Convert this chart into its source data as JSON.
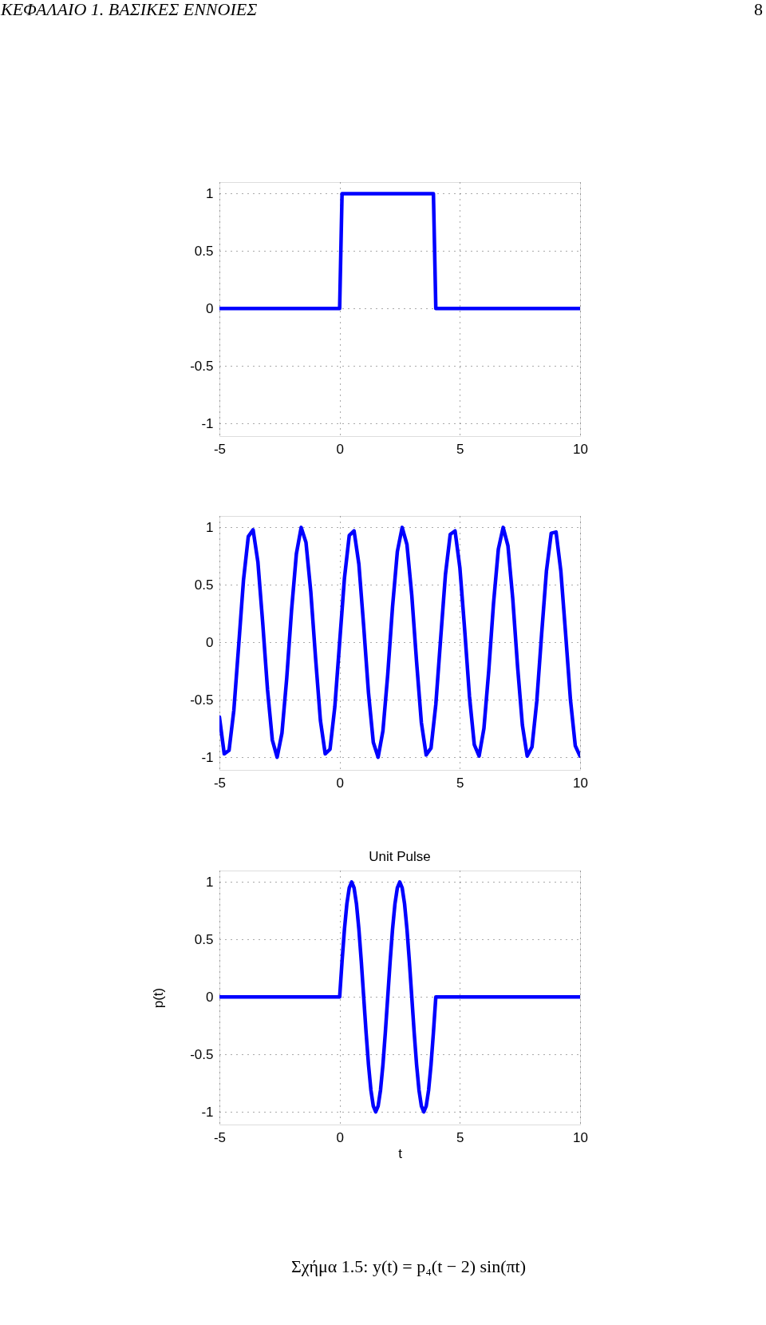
{
  "chart_data": [
    {
      "type": "line",
      "annotations": [
        "ΚΕΦΑΛΑΙΟ 1.  ΒΑΣΙΚΕΣ ΕΝΝΟΙΕΣ",
        "8"
      ],
      "xlim": [
        -5,
        10
      ],
      "ylim": [
        -1.11,
        1.1
      ],
      "xticks": [
        -5,
        0,
        5,
        10
      ],
      "yticks": [
        -1,
        -0.5,
        0,
        0.5,
        1
      ],
      "grid": true,
      "line_style": "solid",
      "series": [
        {
          "color": "#0000ff",
          "x": [
            -5,
            0,
            0.1,
            3.9,
            4,
            10
          ],
          "values": [
            0,
            0,
            1,
            1,
            0,
            0
          ]
        }
      ]
    },
    {
      "type": "line",
      "xlim": [
        -5,
        10
      ],
      "ylim": [
        -1.11,
        1.1
      ],
      "xticks": [
        -5,
        0,
        5,
        10
      ],
      "yticks": [
        -1,
        -0.5,
        0,
        0.5,
        1
      ],
      "grid": true,
      "line_style": "solid",
      "series": [
        {
          "color": "#0000ff",
          "x": [
            -5,
            -4.8,
            -4.6,
            -4.4,
            -4.2,
            -4,
            -3.8,
            -3.6,
            -3.4,
            -3.2,
            -3,
            -2.8,
            -2.6,
            -2.4,
            -2.2,
            -2,
            -1.8,
            -1.6,
            -1.4,
            -1.2,
            -1,
            -0.8,
            -0.6,
            -0.4,
            -0.2,
            0,
            0.2,
            0.4,
            0.6,
            0.8,
            1,
            1.2,
            1.4,
            1.6,
            1.8,
            2,
            2.2,
            2.4,
            2.6,
            2.8,
            3,
            3.2,
            3.4,
            3.6,
            3.8,
            4,
            4.2,
            4.4,
            4.6,
            4.8,
            5,
            5.2,
            5.4,
            5.6,
            5.8,
            6,
            6.2,
            6.4,
            6.6,
            6.8,
            7,
            7.2,
            7.4,
            7.6,
            7.8,
            8,
            8.2,
            8.4,
            8.6,
            8.8,
            9,
            9.2,
            9.4,
            9.6,
            9.8,
            10
          ],
          "values": [
            -0.65,
            -0.97,
            -0.94,
            -0.59,
            -0.03,
            0.54,
            0.92,
            0.98,
            0.7,
            0.17,
            -0.41,
            -0.85,
            -1.0,
            -0.79,
            -0.31,
            0.28,
            0.77,
            1.0,
            0.87,
            0.44,
            -0.14,
            -0.68,
            -0.97,
            -0.93,
            -0.56,
            0,
            0.56,
            0.93,
            0.97,
            0.68,
            0.14,
            -0.44,
            -0.87,
            -1.0,
            -0.77,
            -0.28,
            0.31,
            0.79,
            1.0,
            0.85,
            0.41,
            -0.17,
            -0.7,
            -0.98,
            -0.92,
            -0.54,
            0.03,
            0.59,
            0.94,
            0.97,
            0.65,
            0.11,
            -0.47,
            -0.89,
            -0.99,
            -0.75,
            -0.25,
            0.34,
            0.81,
            1.0,
            0.84,
            0.38,
            -0.21,
            -0.72,
            -0.99,
            -0.91,
            -0.51,
            0.07,
            0.62,
            0.95,
            0.96,
            0.62,
            0.07,
            -0.5,
            -0.9,
            -0.99
          ]
        }
      ]
    },
    {
      "type": "line",
      "title": "Unit Pulse",
      "xlabel": "t",
      "ylabel": "p(t)",
      "annotations": [
        "Σχήμα 1.5: y(t) = p₄(t − 2) sin(πt)"
      ],
      "xlim": [
        -5,
        10
      ],
      "ylim": [
        -1.11,
        1.1
      ],
      "xticks": [
        -5,
        0,
        5,
        10
      ],
      "yticks": [
        -1,
        -0.5,
        0,
        0.5,
        1
      ],
      "grid": true,
      "line_style": "solid",
      "series": [
        {
          "color": "#0000ff",
          "x": [
            -5,
            0,
            0.1,
            0.2,
            0.3,
            0.4,
            0.5,
            0.6,
            0.7,
            0.8,
            0.9,
            1,
            1.1,
            1.2,
            1.3,
            1.4,
            1.5,
            1.6,
            1.7,
            1.8,
            1.9,
            2,
            2.1,
            2.2,
            2.3,
            2.4,
            2.5,
            2.6,
            2.7,
            2.8,
            2.9,
            3,
            3.1,
            3.2,
            3.3,
            3.4,
            3.5,
            3.6,
            3.7,
            3.8,
            3.9,
            4,
            10
          ],
          "values": [
            0,
            0,
            0.31,
            0.59,
            0.81,
            0.95,
            1,
            0.95,
            0.81,
            0.59,
            0.31,
            0,
            -0.31,
            -0.59,
            -0.81,
            -0.95,
            -1,
            -0.95,
            -0.81,
            -0.59,
            -0.31,
            0,
            0.31,
            0.59,
            0.81,
            0.95,
            1,
            0.95,
            0.81,
            0.59,
            0.31,
            0,
            -0.31,
            -0.59,
            -0.81,
            -0.95,
            -1,
            -0.95,
            -0.81,
            -0.59,
            -0.31,
            0,
            0
          ]
        }
      ]
    }
  ]
}
